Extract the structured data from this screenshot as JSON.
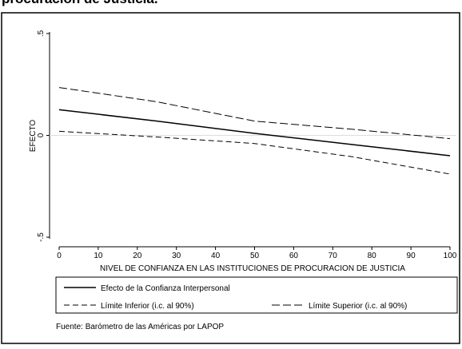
{
  "chart_data": {
    "type": "line",
    "title": "procuración de Justicia.",
    "x_label": "NIVEL DE CONFIANZA EN LAS INSTITUCIONES DE PROCURACION DE JUSTICIA",
    "y_label": "EFECTO",
    "source": "Fuente: Barómetro de las Américas por LAPOP",
    "x": [
      0,
      25,
      50,
      75,
      100
    ],
    "series": [
      {
        "name": "Efecto de la Confianza Interpersonal",
        "color": "#000000",
        "values": [
          0.126,
          0.07,
          0.01,
          -0.045,
          -0.1
        ]
      },
      {
        "name": "Límite Inferior (i.c. al 90%)",
        "color": "#000000",
        "values": [
          0.02,
          -0.008,
          -0.04,
          -0.105,
          -0.19
        ]
      },
      {
        "name": "Límite Superior (i.c. al 90%)",
        "color": "#000000",
        "values": [
          0.235,
          0.165,
          0.07,
          0.03,
          -0.016
        ]
      }
    ],
    "xlim": [
      0,
      100
    ],
    "xticks": [
      0,
      10,
      20,
      30,
      40,
      50,
      60,
      70,
      80,
      90,
      100
    ],
    "ylim": [
      -0.5,
      0.5
    ],
    "yticks": [
      {
        "value": -0.5,
        "label": "-.5"
      },
      0,
      {
        "value": 0.5,
        "label": ".5"
      }
    ]
  }
}
